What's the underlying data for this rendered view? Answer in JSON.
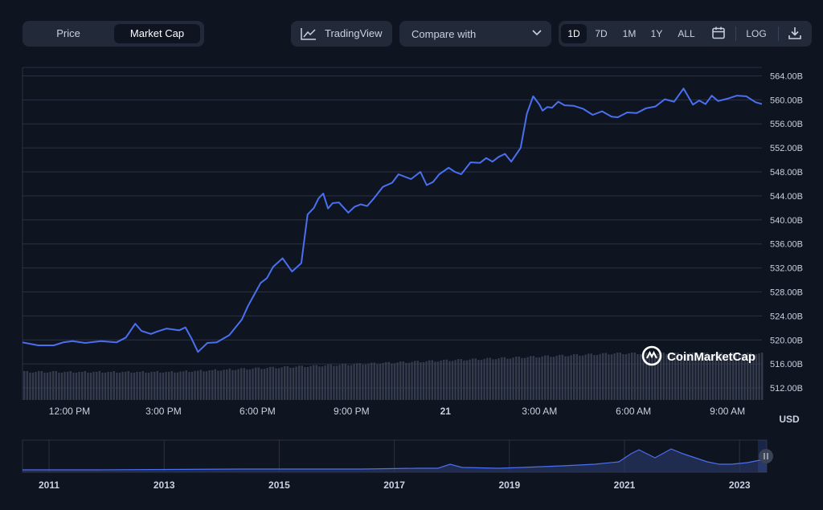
{
  "toolbar": {
    "view_tabs": [
      {
        "label": "Price",
        "active": false
      },
      {
        "label": "Market Cap",
        "active": true
      }
    ],
    "tradingview_label": "TradingView",
    "tradingview_icon": "chart-line-icon",
    "compare_label": "Compare with",
    "compare_icon": "chevron-down-icon",
    "ranges": [
      {
        "label": "1D",
        "active": true
      },
      {
        "label": "7D",
        "active": false
      },
      {
        "label": "1M",
        "active": false
      },
      {
        "label": "1Y",
        "active": false
      },
      {
        "label": "ALL",
        "active": false
      }
    ],
    "calendar_icon": "calendar-icon",
    "log_label": "LOG",
    "download_icon": "download-icon"
  },
  "watermark": {
    "text": "CoinMarketCap",
    "icon": "coinmarketcap-logo-icon"
  },
  "colors": {
    "background": "#0f1421",
    "line": "#4a6ff0",
    "volume": "#3a4255",
    "panel": "#222a3a"
  },
  "navigator": {
    "labels": [
      "2011",
      "2013",
      "2015",
      "2017",
      "2019",
      "2021",
      "2023"
    ],
    "handle_icon": "pause-handle-icon"
  },
  "chart_data": {
    "type": "line",
    "title": "",
    "currency_label": "USD",
    "y_ticks": [
      "564.00B",
      "560.00B",
      "556.00B",
      "552.00B",
      "548.00B",
      "544.00B",
      "540.00B",
      "536.00B",
      "532.00B",
      "528.00B",
      "524.00B",
      "520.00B",
      "516.00B",
      "512.00B"
    ],
    "ylim": [
      510,
      565.4
    ],
    "x_ticks": [
      {
        "label": "12:00 PM",
        "x": 1.5
      },
      {
        "label": "3:00 PM",
        "x": 4.5
      },
      {
        "label": "6:00 PM",
        "x": 7.5
      },
      {
        "label": "9:00 PM",
        "x": 10.5
      },
      {
        "label": "21",
        "x": 13.5
      },
      {
        "label": "3:00 AM",
        "x": 16.5
      },
      {
        "label": "6:00 AM",
        "x": 19.5
      },
      {
        "label": "9:00 AM",
        "x": 22.5
      }
    ],
    "xlim": [
      0,
      23.6
    ],
    "series": [
      {
        "x": [
          0,
          0.5,
          1,
          1.3,
          1.6,
          2,
          2.5,
          3,
          3.3,
          3.6,
          3.8,
          4.1,
          4.3,
          4.6,
          5,
          5.2,
          5.4,
          5.6,
          5.9,
          6.2,
          6.6,
          7,
          7.2,
          7.4,
          7.6,
          7.8,
          8,
          8.3,
          8.6,
          8.9,
          9.1,
          9.3,
          9.45,
          9.6,
          9.75,
          9.9,
          10.1,
          10.4,
          10.6,
          10.8,
          11,
          11.2,
          11.5,
          11.8,
          12,
          12.2,
          12.4,
          12.7,
          12.9,
          13.1,
          13.3,
          13.6,
          13.8,
          14,
          14.3,
          14.6,
          14.8,
          15,
          15.2,
          15.4,
          15.6,
          15.9,
          16.1,
          16.3,
          16.5,
          16.6,
          16.75,
          16.9,
          17.1,
          17.3,
          17.6,
          17.9,
          18.2,
          18.5,
          18.8,
          19,
          19.3,
          19.6,
          19.9,
          20.2,
          20.5,
          20.8,
          21.1,
          21.4,
          21.6,
          21.8,
          22,
          22.2,
          22.5,
          22.8,
          23.1,
          23.4,
          23.6
        ],
        "y": [
          519.6,
          519.1,
          519.1,
          519.6,
          519.8,
          519.5,
          519.8,
          519.6,
          520.4,
          522.7,
          521.5,
          521.0,
          521.4,
          521.9,
          521.6,
          522.1,
          520.2,
          518.0,
          519.5,
          519.6,
          520.8,
          523.4,
          525.7,
          527.6,
          529.5,
          530.3,
          532.2,
          533.6,
          531.4,
          532.8,
          540.9,
          542.0,
          543.6,
          544.4,
          541.9,
          542.8,
          542.9,
          541.2,
          542.2,
          542.6,
          542.3,
          543.5,
          545.5,
          546.2,
          547.6,
          547.2,
          546.8,
          548.0,
          545.8,
          546.3,
          547.6,
          548.7,
          548.0,
          547.6,
          549.6,
          549.5,
          550.3,
          549.7,
          550.5,
          551.0,
          549.7,
          552.0,
          557.7,
          560.6,
          559.2,
          558.2,
          558.8,
          558.7,
          559.7,
          559.1,
          559.0,
          558.5,
          557.5,
          558.1,
          557.2,
          557.1,
          557.9,
          557.8,
          558.6,
          558.9,
          560.1,
          559.7,
          561.9,
          559.2,
          559.9,
          559.3,
          560.7,
          559.8,
          560.2,
          560.7,
          560.6,
          559.6,
          559.3
        ]
      }
    ]
  }
}
